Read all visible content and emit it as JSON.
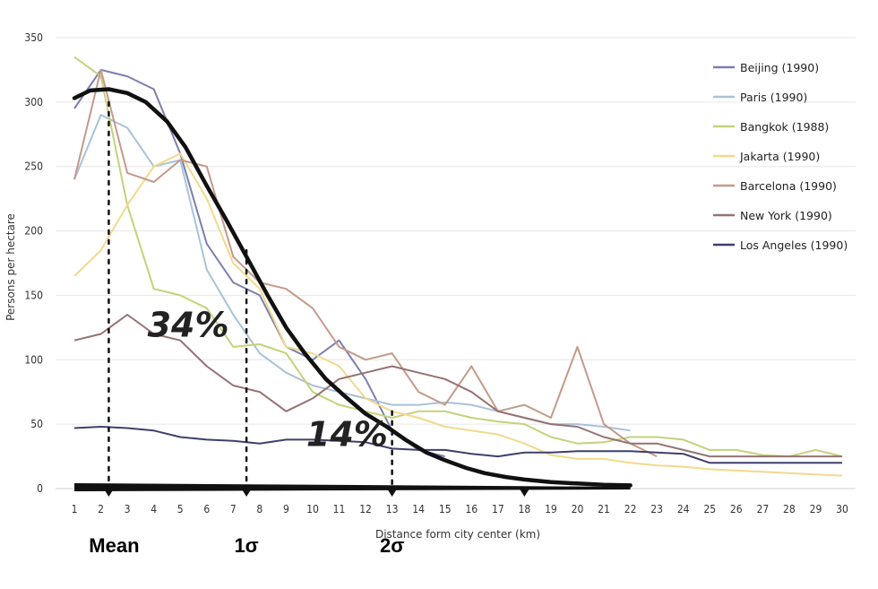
{
  "chart_data": {
    "type": "line",
    "xlabel": "Distance form city center (km)",
    "ylabel": "Persons per hectare",
    "x": [
      1,
      2,
      3,
      4,
      5,
      6,
      7,
      8,
      9,
      10,
      11,
      12,
      13,
      14,
      15,
      16,
      17,
      18,
      19,
      20,
      21,
      22,
      23,
      24,
      25,
      26,
      27,
      28,
      29,
      30
    ],
    "ylim": [
      0,
      350
    ],
    "yticks": [
      0,
      50,
      100,
      150,
      200,
      250,
      300,
      350
    ],
    "grid": true,
    "legend_position": "top-right",
    "series": [
      {
        "name": "Beijing (1990)",
        "color": "#7b7fb0",
        "values": [
          295,
          325,
          320,
          310,
          260,
          190,
          160,
          150,
          110,
          100,
          115,
          85,
          45,
          30,
          25,
          null,
          null,
          null,
          null,
          null,
          null,
          null,
          null,
          null,
          null,
          null,
          null,
          null,
          null,
          null
        ]
      },
      {
        "name": "Paris (1990)",
        "color": "#a9c2d8",
        "values": [
          240,
          290,
          280,
          250,
          255,
          170,
          135,
          105,
          90,
          80,
          75,
          70,
          65,
          65,
          67,
          65,
          60,
          55,
          50,
          50,
          48,
          45,
          null,
          null,
          null,
          null,
          null,
          null,
          null,
          null
        ]
      },
      {
        "name": "Bangkok (1988)",
        "color": "#c5d27a",
        "values": [
          335,
          320,
          220,
          155,
          150,
          140,
          110,
          112,
          105,
          75,
          65,
          60,
          55,
          60,
          60,
          55,
          52,
          50,
          40,
          35,
          36,
          40,
          40,
          38,
          30,
          30,
          26,
          25,
          30,
          25
        ]
      },
      {
        "name": "Jakarta (1990)",
        "color": "#f3d98c",
        "values": [
          165,
          185,
          220,
          250,
          260,
          225,
          175,
          155,
          110,
          105,
          95,
          70,
          60,
          55,
          48,
          45,
          42,
          35,
          26,
          23,
          23,
          20,
          18,
          17,
          15,
          14,
          13,
          12,
          11,
          10
        ]
      },
      {
        "name": "Barcelona (1990)",
        "color": "#c49a8a",
        "values": [
          240,
          325,
          245,
          238,
          255,
          250,
          180,
          160,
          155,
          140,
          110,
          100,
          105,
          75,
          65,
          95,
          60,
          65,
          55,
          110,
          50,
          35,
          25,
          null,
          null,
          null,
          null,
          null,
          null,
          null
        ]
      },
      {
        "name": "New York (1990)",
        "color": "#977173",
        "values": [
          115,
          120,
          135,
          120,
          115,
          95,
          80,
          75,
          60,
          70,
          85,
          90,
          95,
          90,
          85,
          75,
          60,
          55,
          50,
          48,
          40,
          35,
          35,
          30,
          25,
          25,
          25,
          25,
          25,
          25
        ]
      },
      {
        "name": "Los Angeles (1990)",
        "color": "#3f3f6b",
        "values": [
          47,
          48,
          47,
          45,
          40,
          38,
          37,
          35,
          38,
          38,
          37,
          36,
          31,
          30,
          30,
          27,
          25,
          28,
          28,
          29,
          29,
          29,
          28,
          27,
          20,
          20,
          20,
          20,
          20,
          20
        ]
      }
    ],
    "overlay_curve": {
      "color": "#111111",
      "points": [
        [
          1,
          303
        ],
        [
          1.6,
          309
        ],
        [
          2.3,
          310
        ],
        [
          3,
          307
        ],
        [
          3.7,
          300
        ],
        [
          4.5,
          285
        ],
        [
          5.2,
          265
        ],
        [
          6,
          235
        ],
        [
          6.7,
          210
        ],
        [
          7.5,
          180
        ],
        [
          8.3,
          150
        ],
        [
          9,
          125
        ],
        [
          9.7,
          105
        ],
        [
          10.5,
          85
        ],
        [
          11.2,
          72
        ],
        [
          12,
          58
        ],
        [
          12.8,
          48
        ],
        [
          13.5,
          38
        ],
        [
          14.3,
          28
        ],
        [
          15,
          22
        ],
        [
          15.8,
          16
        ],
        [
          16.5,
          12
        ],
        [
          17.3,
          9
        ],
        [
          18,
          7
        ],
        [
          19,
          5
        ],
        [
          20,
          4
        ],
        [
          21,
          3
        ],
        [
          22,
          2.5
        ]
      ]
    },
    "annotations": [
      {
        "text": "34%",
        "x": 5.3,
        "y": 118
      },
      {
        "text": "14%",
        "x": 11.3,
        "y": 33
      }
    ],
    "dotted_markers": [
      {
        "x": 2.3,
        "y_top": 300,
        "label": "Mean"
      },
      {
        "x": 7.5,
        "y_top": 185,
        "label": "1σ"
      },
      {
        "x": 13.0,
        "y_top": 60,
        "label": "2σ"
      },
      {
        "x": 18.0,
        "y_top": 0,
        "label": ""
      }
    ]
  }
}
